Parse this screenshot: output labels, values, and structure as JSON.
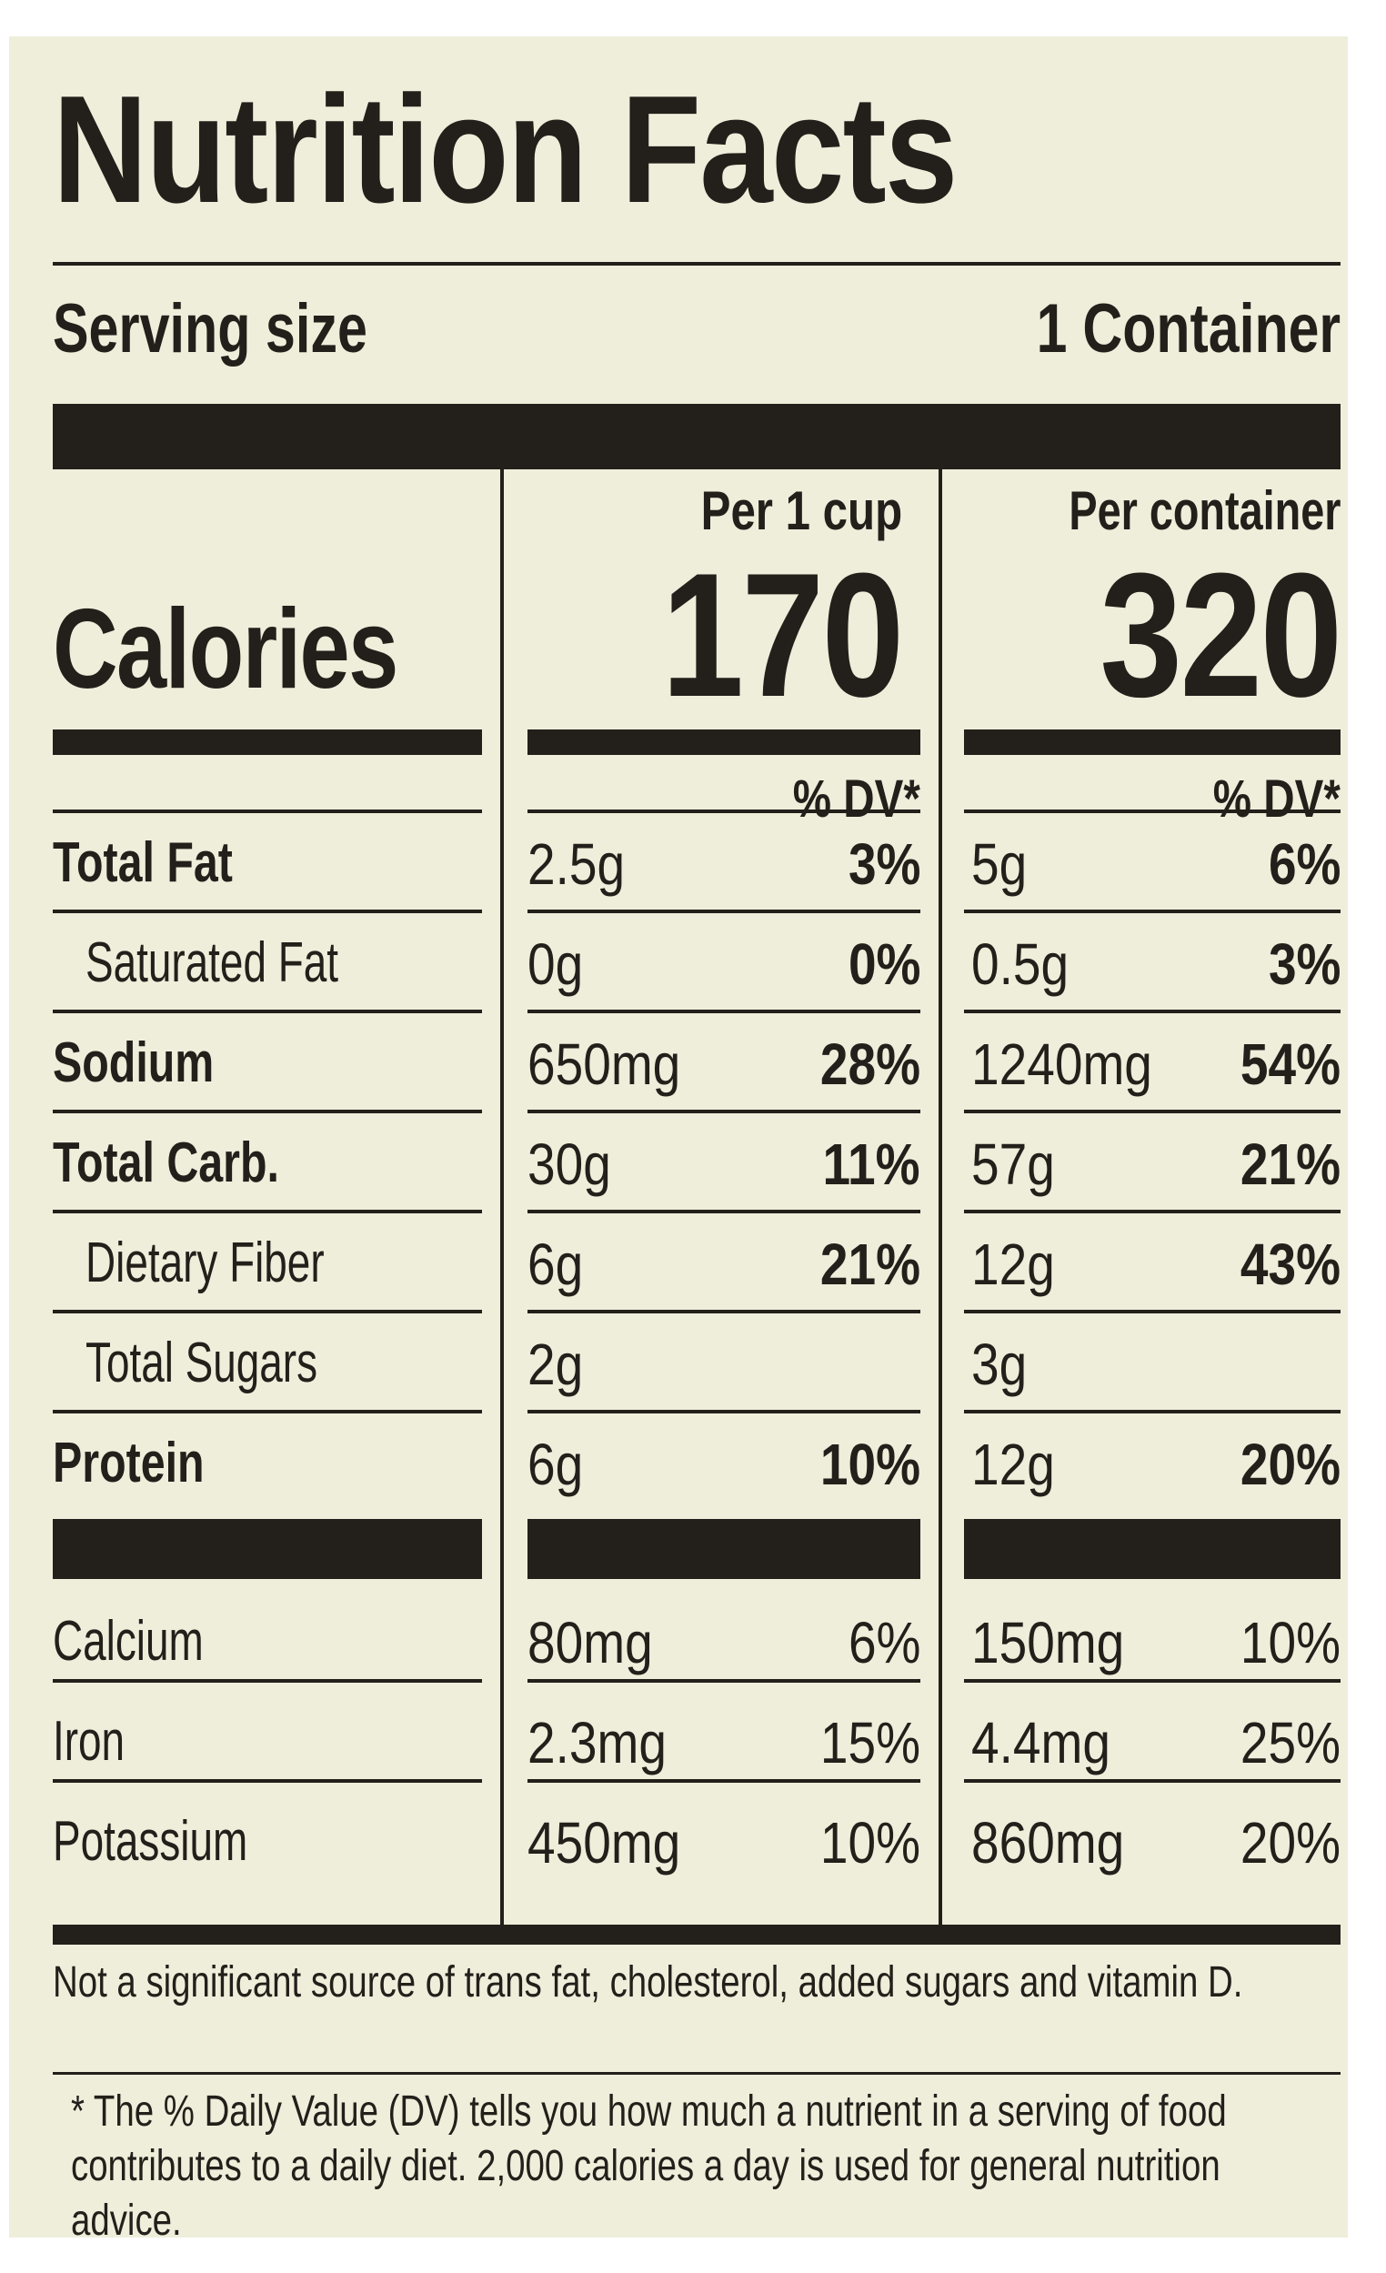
{
  "title": "Nutrition Facts",
  "serving": {
    "label": "Serving size",
    "value": "1 Container"
  },
  "columns": [
    {
      "header": "Per 1 cup",
      "calories": "170",
      "dv_header": "% DV*"
    },
    {
      "header": "Per container",
      "calories": "320",
      "dv_header": "% DV*"
    }
  ],
  "calories_label": "Calories",
  "nutrients": [
    {
      "label": "Total Fat",
      "bold": true,
      "indent": 0,
      "cup": {
        "amount": "2.5g",
        "dv": "3%"
      },
      "container": {
        "amount": "5g",
        "dv": "6%"
      }
    },
    {
      "label": "Saturated Fat",
      "bold": false,
      "indent": 1,
      "cup": {
        "amount": "0g",
        "dv": "0%"
      },
      "container": {
        "amount": "0.5g",
        "dv": "3%"
      }
    },
    {
      "label": "Sodium",
      "bold": true,
      "indent": 0,
      "cup": {
        "amount": "650mg",
        "dv": "28%"
      },
      "container": {
        "amount": "1240mg",
        "dv": "54%"
      }
    },
    {
      "label": "Total Carb.",
      "bold": true,
      "indent": 0,
      "cup": {
        "amount": "30g",
        "dv": "11%"
      },
      "container": {
        "amount": "57g",
        "dv": "21%"
      }
    },
    {
      "label": "Dietary Fiber",
      "bold": false,
      "indent": 1,
      "cup": {
        "amount": "6g",
        "dv": "21%"
      },
      "container": {
        "amount": "12g",
        "dv": "43%"
      }
    },
    {
      "label": "Total Sugars",
      "bold": false,
      "indent": 1,
      "cup": {
        "amount": "2g",
        "dv": ""
      },
      "container": {
        "amount": "3g",
        "dv": ""
      }
    },
    {
      "label": "Protein",
      "bold": true,
      "indent": 0,
      "cup": {
        "amount": "6g",
        "dv": "10%"
      },
      "container": {
        "amount": "12g",
        "dv": "20%"
      }
    }
  ],
  "minerals": [
    {
      "label": "Calcium",
      "cup": {
        "amount": "80mg",
        "dv": "6%"
      },
      "container": {
        "amount": "150mg",
        "dv": "10%"
      }
    },
    {
      "label": "Iron",
      "cup": {
        "amount": "2.3mg",
        "dv": "15%"
      },
      "container": {
        "amount": "4.4mg",
        "dv": "25%"
      }
    },
    {
      "label": "Potassium",
      "cup": {
        "amount": "450mg",
        "dv": "10%"
      },
      "container": {
        "amount": "860mg",
        "dv": "20%"
      }
    }
  ],
  "footnotes": {
    "not_significant": "Not a significant source of trans fat, cholesterol, added sugars and vitamin D.",
    "daily_value": "* The % Daily Value (DV) tells you how much a nutrient in a serving of food contributes to a daily diet. 2,000 calories a day is used for general nutrition advice."
  }
}
